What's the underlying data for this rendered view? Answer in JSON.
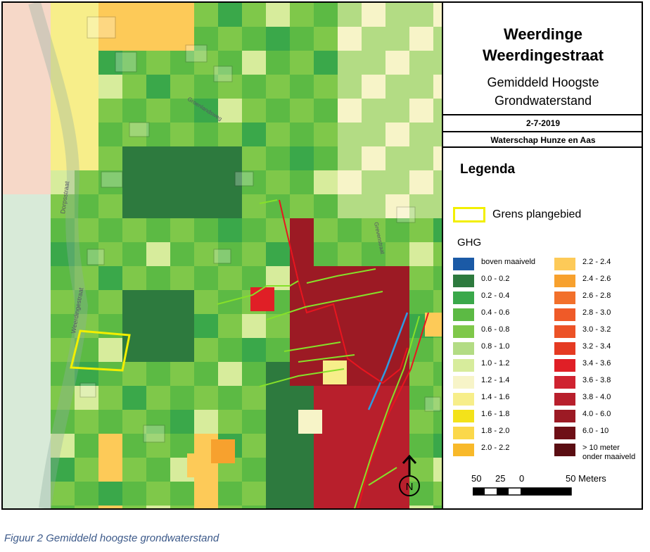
{
  "map": {
    "street_labels": [
      "Dorpsstraat",
      "Weerdingestraat",
      "Groenlandsweg",
      "Grevenstraat"
    ]
  },
  "title": {
    "line1": "Weerdinge",
    "line2": "Weerdingestraat",
    "subtitle1": "Gemiddeld Hoogste",
    "subtitle2": "Grondwaterstand"
  },
  "date": "2-7-2019",
  "organization": "Waterschap Hunze en Aas",
  "legend": {
    "title": "Legenda",
    "boundary_label": "Grens plangebied",
    "ghg_label": "GHG",
    "left_classes": [
      {
        "label": "boven maaiveld",
        "color": "#1b5aa6"
      },
      {
        "label": "0.0 - 0.2",
        "color": "#2d7a3e"
      },
      {
        "label": "0.2 - 0.4",
        "color": "#3aa84a"
      },
      {
        "label": "0.4 - 0.6",
        "color": "#5cba44"
      },
      {
        "label": "0.6 - 0.8",
        "color": "#7fc84a"
      },
      {
        "label": "0.8 - 1.0",
        "color": "#b3dc84"
      },
      {
        "label": "1.0 - 1.2",
        "color": "#d7ec9c"
      },
      {
        "label": "1.2 - 1.4",
        "color": "#f7f4c8"
      },
      {
        "label": "1.4 - 1.6",
        "color": "#f7ee8a"
      },
      {
        "label": "1.6 - 1.8",
        "color": "#f3e21a"
      },
      {
        "label": "1.8 - 2.0",
        "color": "#fbd84a"
      },
      {
        "label": "2.0 - 2.2",
        "color": "#f8b92a"
      }
    ],
    "right_classes": [
      {
        "label": "2.2 - 2.4",
        "color": "#fdca58"
      },
      {
        "label": "2.4 - 2.6",
        "color": "#f7a12e"
      },
      {
        "label": "2.6 - 2.8",
        "color": "#f2702b"
      },
      {
        "label": "2.8 - 3.0",
        "color": "#ef5a28"
      },
      {
        "label": "3.0 - 3.2",
        "color": "#ec5226"
      },
      {
        "label": "3.2 - 3.4",
        "color": "#e53a22"
      },
      {
        "label": "3.4 - 3.6",
        "color": "#e01f26"
      },
      {
        "label": "3.6 - 3.8",
        "color": "#cf2330"
      },
      {
        "label": "3.8 - 4.0",
        "color": "#b81f2c"
      },
      {
        "label": "4.0 - 6.0",
        "color": "#9c1a24"
      },
      {
        "label": "6.0 - 10",
        "color": "#6e0f16"
      },
      {
        "label": "> 10 meter",
        "color": "#5a0d12"
      }
    ],
    "last_sublabel": "onder maaiveld"
  },
  "scalebar": {
    "labels": [
      "50",
      "25",
      "0",
      "50 Meters"
    ]
  },
  "north_label": "N",
  "caption": "Figuur 2 Gemiddeld hoogste grondwaterstand"
}
